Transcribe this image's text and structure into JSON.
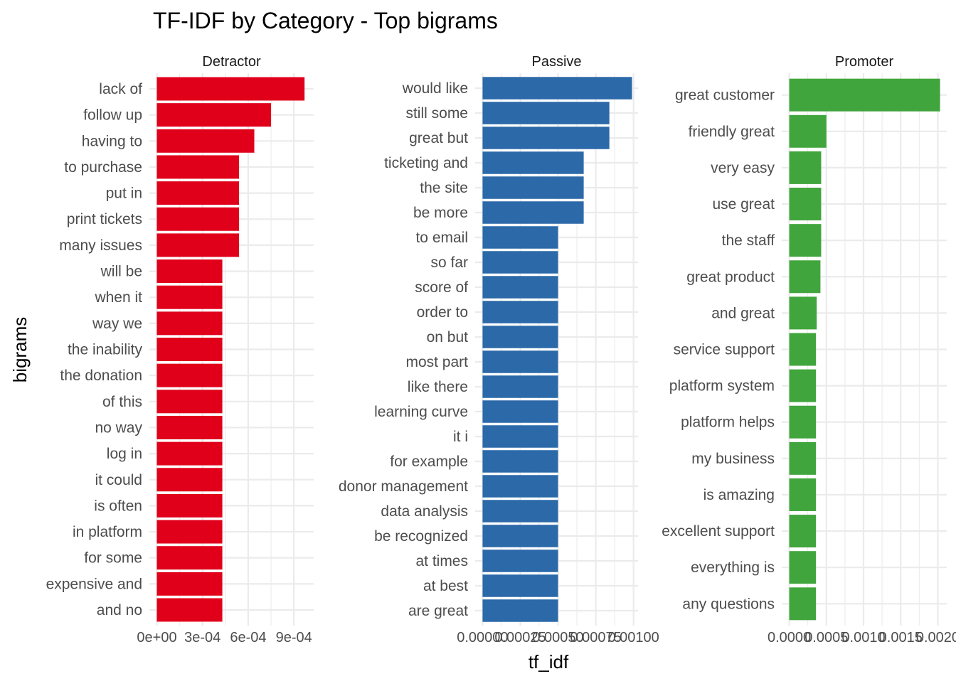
{
  "chart_data": {
    "type": "bar",
    "orientation": "horizontal",
    "title": "TF-IDF by Category - Top bigrams",
    "xlabel": "tf_idf",
    "ylabel": "bigrams",
    "grid": true,
    "legend": "none",
    "facets": [
      {
        "name": "Detractor",
        "color": "#e0001a",
        "xlim": [
          0,
          0.00103
        ],
        "ticks": [
          0,
          0.0003,
          0.0006,
          0.0009
        ],
        "tick_labels": [
          "0e+00",
          "3e-04",
          "6e-04",
          "9e-04"
        ],
        "categories": [
          "lack of",
          "follow up",
          "having to",
          "to purchase",
          "put in",
          "print tickets",
          "many issues",
          "will be",
          "when it",
          "way we",
          "the inability",
          "the donation",
          "of this",
          "no way",
          "log in",
          "it could",
          "is often",
          "in platform",
          "for some",
          "expensive and",
          "and no"
        ],
        "values": [
          0.00097,
          0.00075,
          0.00064,
          0.00054,
          0.00054,
          0.00054,
          0.00054,
          0.00043,
          0.00043,
          0.00043,
          0.00043,
          0.00043,
          0.00043,
          0.00043,
          0.00043,
          0.00043,
          0.00043,
          0.00043,
          0.00043,
          0.00043,
          0.00043
        ]
      },
      {
        "name": "Passive",
        "color": "#2c69a9",
        "xlim": [
          0,
          0.00103
        ],
        "ticks": [
          0,
          0.00025,
          0.0005,
          0.00075,
          0.001
        ],
        "tick_labels": [
          "0.00000",
          "0.00025",
          "0.00050",
          "0.00075",
          "0.00100"
        ],
        "categories": [
          "would like",
          "still some",
          "great but",
          "ticketing and",
          "the site",
          "be more",
          "to email",
          "so far",
          "score of",
          "order to",
          "on but",
          "most part",
          "like there",
          "learning curve",
          "it i",
          "for example",
          "donor management",
          "data analysis",
          "be recognized",
          "at times",
          "at best",
          "are great"
        ],
        "values": [
          0.00099,
          0.00084,
          0.00084,
          0.00067,
          0.00067,
          0.00067,
          0.0005,
          0.0005,
          0.0005,
          0.0005,
          0.0005,
          0.0005,
          0.0005,
          0.0005,
          0.0005,
          0.0005,
          0.0005,
          0.0005,
          0.0005,
          0.0005,
          0.0005,
          0.0005
        ]
      },
      {
        "name": "Promoter",
        "color": "#41a53d",
        "xlim": [
          0,
          0.00212
        ],
        "ticks": [
          0,
          0.0005,
          0.001,
          0.0015,
          0.002
        ],
        "tick_labels": [
          "0.0000",
          "0.0005",
          "0.0010",
          "0.0015",
          "0.0020"
        ],
        "categories": [
          "great customer",
          "friendly great",
          "very easy",
          "use great",
          "the staff",
          "great product",
          "and great",
          "service support",
          "platform system",
          "platform helps",
          "my business",
          "is amazing",
          "excellent support",
          "everything is",
          "any questions"
        ],
        "values": [
          0.00203,
          0.0005,
          0.00043,
          0.00043,
          0.00043,
          0.00042,
          0.00037,
          0.00036,
          0.00036,
          0.00036,
          0.00036,
          0.00036,
          0.00036,
          0.00036,
          0.00036
        ]
      }
    ]
  }
}
